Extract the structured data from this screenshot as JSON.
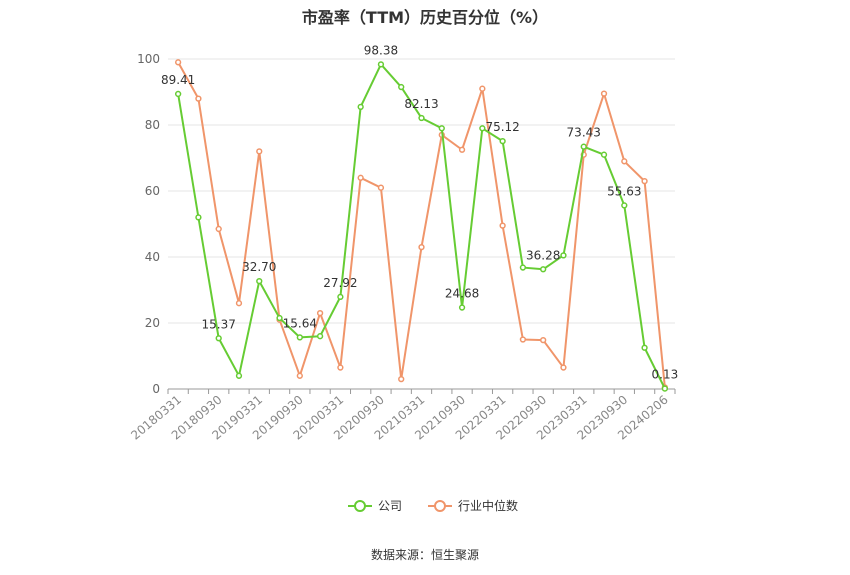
{
  "colors": {
    "company": "#66cc33",
    "industry": "#f0956a",
    "grid": "#e6e6e6",
    "axis": "#999999",
    "text": "#333333"
  },
  "footer": {
    "source": "数据来源：恒生聚源"
  },
  "chart_data": {
    "type": "line",
    "title": "市盈率（TTM）历史百分位（%）",
    "xlabel": "",
    "ylabel": "",
    "ylim": [
      0,
      100
    ],
    "yticks": [
      0,
      20,
      40,
      60,
      80,
      100
    ],
    "grid": true,
    "legend_position": "bottom-center",
    "x": [
      "20180331",
      "20180630",
      "20180930",
      "20181231",
      "20190331",
      "20190630",
      "20190930",
      "20191231",
      "20200331",
      "20200630",
      "20200930",
      "20201231",
      "20210331",
      "20210630",
      "20210930",
      "20211231",
      "20220331",
      "20220630",
      "20220930",
      "20221231",
      "20230331",
      "20230630",
      "20230930",
      "20231231",
      "20240206"
    ],
    "xtick_labels": [
      "20180331",
      "20180930",
      "20190331",
      "20190930",
      "20200331",
      "20200930",
      "20210331",
      "20210930",
      "20220331",
      "20220930",
      "20230331",
      "20230930",
      "20240206"
    ],
    "series": [
      {
        "name": "公司",
        "values": [
          89.41,
          52.0,
          15.37,
          4.0,
          32.7,
          21.5,
          15.64,
          16.0,
          27.92,
          85.5,
          98.38,
          91.5,
          82.13,
          79.0,
          24.68,
          79.0,
          75.12,
          36.8,
          36.28,
          40.5,
          73.43,
          71.0,
          55.63,
          12.5,
          0.13
        ],
        "labels": {
          "0": "89.41",
          "2": "15.37",
          "4": "32.70",
          "6": "15.64",
          "8": "27.92",
          "10": "98.38",
          "12": "82.13",
          "14": "24.68",
          "16": "75.12",
          "18": "36.28",
          "20": "73.43",
          "22": "55.63",
          "24": "0.13"
        }
      },
      {
        "name": "行业中位数",
        "values": [
          99.0,
          88.0,
          48.5,
          26.0,
          72.0,
          21.0,
          4.0,
          23.0,
          6.5,
          64.0,
          61.0,
          3.0,
          43.0,
          77.0,
          72.5,
          91.0,
          49.5,
          15.0,
          14.8,
          6.5,
          71.0,
          89.5,
          69.0,
          63.0,
          0.5
        ]
      }
    ]
  }
}
